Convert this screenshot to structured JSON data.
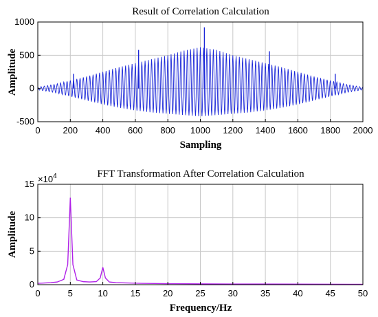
{
  "chart_data": [
    {
      "type": "line",
      "title": "Result of Correlation Calculation",
      "xlabel": "Sampling",
      "ylabel": "Amplitude",
      "xlim": [
        0,
        2000
      ],
      "ylim": [
        -500,
        1000
      ],
      "xticks": [
        0,
        200,
        400,
        600,
        800,
        1000,
        1200,
        1400,
        1600,
        1800,
        2000
      ],
      "yticks": [
        -500,
        0,
        500,
        1000
      ],
      "grid": true,
      "color": "#1c28d8",
      "series": [
        {
          "x": [
            0,
            100,
            200,
            300,
            400,
            500,
            600,
            700,
            800,
            900,
            1000,
            1100,
            1200,
            1300,
            1400,
            1500,
            1600,
            1700,
            1800,
            1900,
            2000
          ],
          "upper": [
            20,
            60,
            120,
            180,
            250,
            320,
            380,
            440,
            500,
            570,
            620,
            580,
            500,
            440,
            380,
            320,
            250,
            180,
            120,
            60,
            20
          ],
          "lower": [
            -20,
            -60,
            -120,
            -180,
            -240,
            -290,
            -330,
            -360,
            -380,
            -400,
            -420,
            -400,
            -380,
            -360,
            -330,
            -290,
            -240,
            -180,
            -120,
            -60,
            -20
          ],
          "spikes": [
            [
              220,
              220
            ],
            [
              620,
              580
            ],
            [
              1025,
              920
            ],
            [
              1425,
              560
            ],
            [
              1830,
              220
            ]
          ]
        }
      ]
    },
    {
      "type": "line",
      "title": "FFT Transformation After Correlation Calculation",
      "xlabel": "Frequency/Hz",
      "ylabel": "Amplitude",
      "exponent_label": "×10",
      "exponent_power": "4",
      "xlim": [
        0,
        50
      ],
      "ylim": [
        0,
        15
      ],
      "xticks": [
        0,
        5,
        10,
        15,
        20,
        25,
        30,
        35,
        40,
        45,
        50
      ],
      "yticks": [
        0,
        5,
        10,
        15
      ],
      "grid": true,
      "color": "#b020e8",
      "series": [
        {
          "x": [
            0,
            1,
            2,
            3,
            4,
            4.6,
            5,
            5.4,
            6,
            7,
            8,
            9,
            9.6,
            10,
            10.4,
            11,
            12,
            14,
            16,
            20,
            25,
            30,
            40,
            50
          ],
          "y": [
            0.2,
            0.25,
            0.3,
            0.4,
            0.8,
            3.0,
            13.0,
            3.0,
            0.7,
            0.45,
            0.4,
            0.45,
            1.0,
            2.6,
            1.0,
            0.4,
            0.3,
            0.25,
            0.2,
            0.15,
            0.12,
            0.1,
            0.08,
            0.05
          ]
        }
      ]
    }
  ]
}
